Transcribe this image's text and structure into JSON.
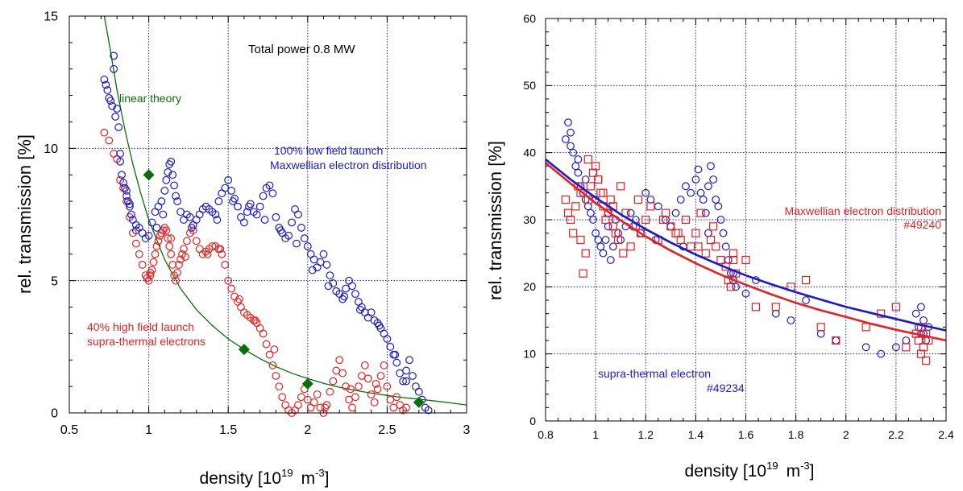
{
  "chart_data": [
    {
      "type": "scatter",
      "xlabel": "density [10",
      "xlabel_sup": "19",
      "xlabel_unit": "m",
      "xlabel_unit_sup": "-3",
      "xlabel_end": "]",
      "ylabel": "rel. transmission [%]",
      "xlim": [
        0.5,
        3
      ],
      "ylim": [
        0,
        15
      ],
      "xticks": [
        "0.5",
        "1",
        "1.5",
        "2",
        "2.5",
        "3"
      ],
      "yticks": [
        "0",
        "5",
        "10",
        "15"
      ],
      "grid": true,
      "annotations": {
        "power": "Total power 0.8 MW",
        "linear": "linear theory",
        "low1": "100% low field launch",
        "low2": "Maxwellian electron distribution",
        "high1": "40% high field launch",
        "high2": "supra-thermal electrons"
      },
      "colors": {
        "blue": "#1a1acc",
        "red": "#e82020",
        "green": "#0a6e0a",
        "grid": "#1a1acc"
      },
      "series_blue": {
        "marker": "circle",
        "x": [
          0.72,
          0.73,
          0.74,
          0.75,
          0.76,
          0.77,
          0.78,
          0.79,
          0.8,
          0.81,
          0.82,
          0.83,
          0.84,
          0.85,
          0.86,
          0.87,
          0.88,
          0.89,
          0.9,
          0.92,
          0.94,
          0.96,
          0.98,
          1.0,
          1.02,
          1.04,
          1.06,
          1.08,
          1.1,
          1.11,
          1.12,
          1.13,
          1.14,
          1.15,
          1.16,
          1.18,
          1.2,
          1.22,
          1.24,
          1.26,
          1.28,
          1.3,
          1.32,
          1.34,
          1.36,
          1.38,
          1.4,
          1.42,
          1.44,
          1.46,
          1.48,
          1.5,
          1.52,
          1.54,
          1.56,
          1.58,
          1.6,
          1.62,
          1.64,
          1.66,
          1.68,
          1.7,
          1.72,
          1.74,
          1.76,
          1.78,
          1.8,
          1.82,
          1.84,
          1.86,
          1.88,
          1.9,
          1.92,
          1.94,
          1.96,
          1.98,
          2.0,
          2.02,
          2.04,
          2.06,
          2.08,
          2.1,
          2.12,
          2.14,
          2.16,
          2.18,
          2.2,
          2.22,
          2.24,
          2.26,
          2.28,
          2.3,
          2.32,
          2.34,
          2.36,
          2.38,
          2.4,
          2.42,
          2.44,
          2.46,
          2.48,
          2.5,
          2.52,
          2.54,
          2.56,
          2.58,
          2.6,
          2.62,
          2.64,
          2.66,
          2.68,
          2.7,
          2.72,
          2.74,
          2.76,
          0.78,
          0.82,
          0.86,
          0.88,
          0.92,
          1.05,
          1.09,
          1.17,
          1.27,
          1.43,
          1.53,
          1.63,
          1.73,
          1.83,
          1.93,
          2.03,
          2.13,
          2.23,
          2.33,
          2.45,
          2.55,
          2.62
        ],
        "y": [
          12.6,
          12.4,
          12.2,
          11.9,
          11.8,
          11.6,
          13.5,
          11.2,
          11.5,
          10.8,
          9.8,
          9.0,
          8.7,
          8.5,
          8.2,
          8.0,
          7.8,
          7.5,
          7.3,
          6.9,
          7.0,
          6.8,
          6.6,
          6.7,
          7.2,
          7.6,
          7.8,
          8.0,
          8.4,
          8.8,
          9.1,
          9.4,
          9.5,
          9.0,
          8.6,
          8.0,
          7.6,
          7.3,
          7.5,
          7.4,
          7.1,
          7.3,
          7.5,
          7.7,
          7.8,
          7.7,
          7.6,
          7.5,
          8.0,
          8.3,
          8.5,
          8.8,
          8.4,
          8.1,
          7.8,
          7.4,
          7.2,
          7.6,
          7.9,
          7.6,
          7.5,
          7.8,
          8.2,
          8.5,
          8.6,
          8.3,
          7.4,
          7.0,
          6.8,
          6.6,
          6.7,
          7.2,
          7.7,
          7.5,
          7.0,
          6.6,
          6.3,
          6.0,
          5.8,
          5.5,
          5.7,
          6.0,
          5.6,
          5.2,
          4.9,
          4.6,
          4.5,
          4.3,
          4.7,
          5.0,
          4.8,
          4.5,
          4.2,
          4.0,
          3.8,
          3.6,
          3.8,
          3.5,
          3.4,
          3.2,
          3.0,
          2.8,
          2.5,
          2.2,
          1.9,
          1.5,
          1.2,
          1.6,
          2.0,
          1.4,
          1.0,
          0.8,
          0.5,
          0.2,
          0.1,
          13.0,
          9.5,
          8.4,
          7.9,
          7.1,
          7.0,
          7.5,
          8.2,
          7.0,
          7.3,
          8.0,
          7.8,
          7.3,
          6.9,
          6.4,
          5.4,
          4.8,
          4.4,
          3.9,
          3.3,
          2.2,
          1.2
        ]
      },
      "series_red": {
        "marker": "circle",
        "x": [
          0.72,
          0.75,
          0.78,
          0.8,
          0.82,
          0.84,
          0.86,
          0.88,
          0.9,
          0.92,
          0.94,
          0.96,
          0.98,
          1.0,
          1.01,
          1.02,
          1.03,
          1.04,
          1.05,
          1.06,
          1.07,
          1.08,
          1.09,
          1.1,
          1.11,
          1.12,
          1.13,
          1.14,
          1.15,
          1.16,
          1.17,
          1.18,
          1.19,
          1.2,
          1.21,
          1.22,
          1.24,
          1.26,
          1.28,
          1.3,
          1.32,
          1.34,
          1.36,
          1.38,
          1.4,
          1.42,
          1.44,
          1.46,
          1.48,
          1.5,
          1.52,
          1.54,
          1.56,
          1.58,
          1.6,
          1.62,
          1.64,
          1.66,
          1.68,
          1.7,
          1.72,
          1.74,
          1.76,
          1.78,
          1.8,
          1.82,
          1.84,
          1.86,
          1.88,
          1.9,
          1.92,
          1.94,
          1.96,
          1.98,
          2.0,
          2.02,
          2.04,
          2.06,
          2.08,
          2.1,
          2.12,
          2.14,
          2.16,
          2.18,
          2.2,
          2.22,
          2.24,
          2.26,
          2.28,
          2.3,
          2.32,
          2.34,
          2.36,
          2.38,
          2.4,
          2.42,
          2.44,
          2.46,
          2.48,
          2.5,
          2.52,
          2.54,
          2.56,
          2.58,
          2.6,
          2.62,
          0.99,
          1.01,
          1.14,
          1.23,
          1.37,
          1.45,
          1.57,
          1.67,
          1.79,
          2.11,
          2.27,
          2.43
        ],
        "y": [
          10.6,
          10.3,
          9.8,
          9.6,
          8.8,
          8.5,
          8.0,
          7.4,
          6.8,
          6.4,
          6.0,
          5.6,
          5.2,
          5.0,
          5.2,
          5.4,
          5.7,
          6.0,
          6.3,
          6.5,
          6.7,
          6.8,
          6.9,
          7.0,
          6.9,
          6.6,
          6.3,
          6.0,
          5.6,
          5.2,
          5.0,
          5.3,
          5.6,
          5.8,
          6.0,
          6.2,
          6.5,
          6.8,
          6.9,
          6.5,
          6.2,
          6.0,
          6.1,
          6.2,
          6.3,
          6.3,
          6.2,
          6.0,
          5.6,
          5.0,
          4.7,
          4.4,
          4.2,
          4.0,
          3.8,
          3.7,
          3.6,
          3.5,
          3.4,
          3.2,
          3.0,
          2.6,
          2.2,
          1.8,
          1.4,
          1.0,
          0.6,
          0.3,
          0.1,
          0.0,
          0.1,
          0.3,
          0.6,
          0.9,
          0.5,
          0.2,
          0.4,
          0.7,
          0.2,
          0.0,
          0.3,
          0.8,
          1.2,
          1.6,
          2.0,
          1.5,
          1.0,
          0.5,
          0.2,
          0.6,
          1.0,
          1.4,
          1.8,
          1.3,
          0.7,
          0.4,
          0.9,
          1.4,
          1.8,
          1.0,
          0.5,
          0.2,
          0.6,
          0.3,
          0.1,
          0.2,
          5.1,
          5.3,
          6.6,
          5.9,
          6.0,
          6.2,
          4.3,
          3.5,
          2.4,
          0.2,
          0.9,
          1.1
        ]
      },
      "linear_theory": {
        "x": [
          0.72,
          0.75,
          0.8,
          0.85,
          0.9,
          0.95,
          1.0,
          1.1,
          1.2,
          1.3,
          1.4,
          1.5,
          1.6,
          1.7,
          1.8,
          1.9,
          2.0,
          2.1,
          2.2,
          2.3,
          2.4,
          2.5,
          2.6,
          2.7,
          2.8,
          2.9,
          3.0
        ],
        "y": [
          15.0,
          14.0,
          12.2,
          10.7,
          9.4,
          8.3,
          7.3,
          5.8,
          4.7,
          3.9,
          3.3,
          2.8,
          2.4,
          2.05,
          1.75,
          1.5,
          1.3,
          1.12,
          0.97,
          0.85,
          0.75,
          0.66,
          0.58,
          0.52,
          0.45,
          0.38,
          0.3
        ]
      },
      "diamonds": {
        "x": [
          1.0,
          1.6,
          2.0,
          2.7
        ],
        "y": [
          9.0,
          2.4,
          1.1,
          0.4
        ]
      }
    },
    {
      "type": "scatter",
      "xlabel": "density [10",
      "xlabel_sup": "19",
      "xlabel_unit": "m",
      "xlabel_unit_sup": "-3",
      "xlabel_end": "]",
      "ylabel": "rel. transmission [%]",
      "xlim": [
        0.8,
        2.4
      ],
      "ylim": [
        0,
        60
      ],
      "xticks": [
        "0.8",
        "1",
        "1.2",
        "1.4",
        "1.6",
        "1.8",
        "2",
        "2.2",
        "2.4"
      ],
      "yticks": [
        "0",
        "10",
        "20",
        "30",
        "40",
        "50",
        "60"
      ],
      "grid": true,
      "annotations": {
        "max1": "Maxwellian electron distribution",
        "max2": "#49240",
        "supra1": "supra-thermal electron",
        "supra2": "#49234"
      },
      "colors": {
        "blue": "#1a1acc",
        "red": "#e82020",
        "grid": "#1a1acc"
      },
      "series_blue": {
        "marker": "circle",
        "x": [
          0.88,
          0.89,
          0.9,
          0.91,
          0.92,
          0.93,
          0.94,
          0.95,
          0.96,
          0.97,
          0.98,
          0.99,
          1.0,
          1.01,
          1.02,
          1.03,
          1.04,
          1.05,
          1.06,
          1.07,
          1.08,
          1.09,
          1.1,
          1.12,
          1.14,
          1.16,
          1.18,
          1.2,
          1.22,
          1.25,
          1.28,
          1.3,
          1.32,
          1.34,
          1.36,
          1.38,
          1.4,
          1.41,
          1.42,
          1.43,
          1.44,
          1.45,
          1.46,
          1.47,
          1.48,
          1.49,
          1.5,
          1.51,
          1.52,
          1.53,
          1.54,
          1.55,
          1.56,
          1.6,
          1.64,
          1.72,
          1.78,
          1.84,
          1.9,
          1.96,
          2.08,
          2.14,
          2.2,
          2.24,
          2.28,
          2.29,
          2.3,
          2.31,
          2.32,
          2.33,
          0.9,
          0.93,
          0.96,
          1.0,
          1.05,
          1.15,
          1.24,
          1.35,
          1.45,
          1.55,
          2.3,
          2.31
        ],
        "y": [
          42,
          44.5,
          43,
          40,
          38,
          37,
          35,
          34,
          33,
          32,
          31,
          30,
          28,
          27,
          26,
          25,
          27,
          29,
          24,
          26,
          30,
          28,
          27,
          29,
          31,
          30,
          28,
          34,
          33,
          32,
          30,
          29,
          31,
          33,
          35,
          34,
          36,
          37.5,
          34,
          33,
          31,
          35,
          38,
          36,
          33,
          32,
          30,
          28,
          26,
          24,
          22,
          21,
          20,
          19,
          21,
          16,
          15,
          18,
          13,
          12,
          11,
          10,
          11,
          12,
          16,
          14,
          17,
          13,
          12,
          14,
          41,
          39,
          36,
          33,
          31,
          29,
          27,
          26,
          28,
          22,
          13,
          15
        ]
      },
      "series_red": {
        "marker": "square",
        "x": [
          0.88,
          0.89,
          0.9,
          0.91,
          0.92,
          0.93,
          0.94,
          0.95,
          0.96,
          0.97,
          0.98,
          0.99,
          1.0,
          1.01,
          1.02,
          1.03,
          1.04,
          1.05,
          1.06,
          1.07,
          1.08,
          1.09,
          1.1,
          1.12,
          1.14,
          1.16,
          1.18,
          1.2,
          1.22,
          1.25,
          1.28,
          1.3,
          1.32,
          1.34,
          1.36,
          1.38,
          1.4,
          1.42,
          1.44,
          1.46,
          1.48,
          1.5,
          1.52,
          1.53,
          1.54,
          1.55,
          1.56,
          1.6,
          1.64,
          1.72,
          1.78,
          1.84,
          1.9,
          1.96,
          2.08,
          2.14,
          2.2,
          2.24,
          2.28,
          2.29,
          2.3,
          2.31,
          2.32,
          2.33,
          0.94,
          0.97,
          1.01,
          1.03,
          1.07,
          1.11,
          1.17,
          1.27,
          1.33,
          1.41,
          1.47,
          1.55,
          2.3,
          2.32
        ],
        "y": [
          33,
          31,
          30,
          28,
          32,
          35,
          34,
          22,
          25,
          33,
          35,
          37,
          38,
          36,
          34,
          32,
          30,
          31,
          33,
          29,
          28,
          27,
          35,
          31,
          26,
          29,
          28,
          30,
          32,
          27,
          31,
          29,
          28,
          27,
          30,
          26,
          28,
          31,
          25,
          27,
          26,
          24,
          23,
          21,
          20,
          25,
          22,
          24,
          17,
          17,
          20,
          21,
          14,
          12,
          14,
          16,
          17,
          11,
          13,
          12,
          10,
          11,
          9,
          12,
          27,
          39,
          36,
          34,
          32,
          25,
          33,
          30,
          28,
          26,
          29,
          24,
          14,
          13
        ]
      },
      "fit_blue": {
        "x": [
          0.8,
          0.9,
          1.0,
          1.1,
          1.2,
          1.3,
          1.4,
          1.5,
          1.6,
          1.7,
          1.8,
          1.9,
          2.0,
          2.1,
          2.2,
          2.3,
          2.4
        ],
        "y": [
          39,
          36,
          33.3,
          30.8,
          28.6,
          26.6,
          24.8,
          23.2,
          21.7,
          20.4,
          19.2,
          18.1,
          17.0,
          16.1,
          15.2,
          14.3,
          13.5
        ]
      },
      "fit_red": {
        "x": [
          0.8,
          0.9,
          1.0,
          1.1,
          1.2,
          1.3,
          1.4,
          1.5,
          1.6,
          1.7,
          1.8,
          1.9,
          2.0,
          2.1,
          2.2,
          2.3,
          2.4
        ],
        "y": [
          38.5,
          35.4,
          32.5,
          29.9,
          27.5,
          25.4,
          23.5,
          21.8,
          20.3,
          18.9,
          17.6,
          16.5,
          15.5,
          14.5,
          13.6,
          12.8,
          12.0
        ]
      }
    }
  ]
}
